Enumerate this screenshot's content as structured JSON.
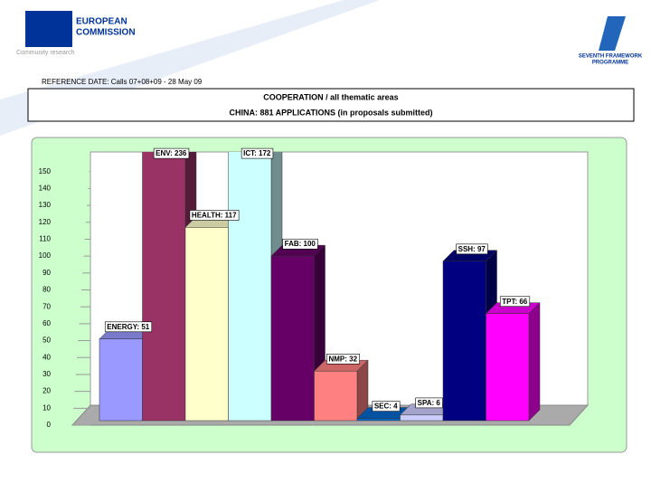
{
  "header": {
    "org_line1": "EUROPEAN",
    "org_line2": "COMMISSION",
    "org_sub": "Community research",
    "programme_line1": "SEVENTH FRAMEWORK",
    "programme_line2": "PROGRAMME",
    "reference": "REFERENCE DATE: Calls 07+08+09 - 28 May 09"
  },
  "box": {
    "line1": "COOPERATION / all thematic areas",
    "line2": "CHINA: 881 APPLICATIONS (in proposals submitted)"
  },
  "chart_data": {
    "type": "bar3d",
    "values": [
      51,
      236,
      117,
      172,
      100,
      32,
      4,
      6,
      97,
      66
    ],
    "value_labels": [
      "ENERGY: 51",
      "ENV: 236",
      "HEALTH: 117",
      "ICT: 172",
      "FAB: 100",
      "NMP: 32",
      "SEC: 4",
      "SPA: 6",
      "SSH: 97",
      "TPT: 66"
    ],
    "colors": [
      "#9999ff",
      "#993366",
      "#ffffcc",
      "#ccffff",
      "#660066",
      "#ff8080",
      "#0066cc",
      "#ccccff",
      "#000080",
      "#ff00ff"
    ],
    "ylim": [
      0,
      160
    ],
    "yticks": [
      0,
      10,
      20,
      30,
      40,
      50,
      60,
      70,
      80,
      90,
      100,
      110,
      120,
      130,
      140,
      150
    ]
  }
}
